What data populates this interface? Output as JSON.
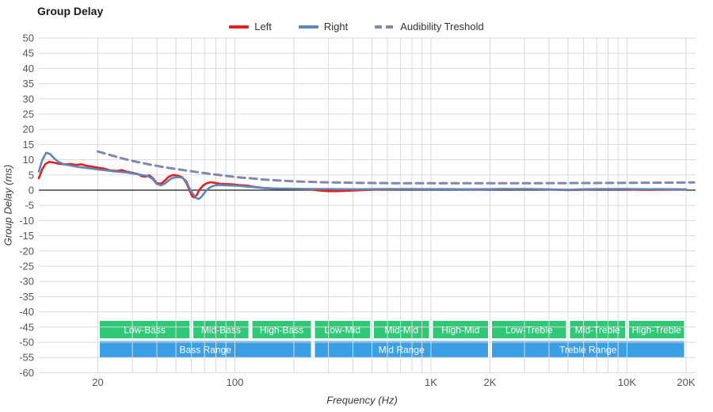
{
  "title": "Group Delay",
  "legend": {
    "items": [
      {
        "label": "Left",
        "color": "#e32020",
        "style": "solid"
      },
      {
        "label": "Right",
        "color": "#5e87b8",
        "style": "solid"
      },
      {
        "label": "Audibility Treshold",
        "color": "#8486ab",
        "style": "dashed"
      }
    ]
  },
  "colors": {
    "grid": "#d9d9d9",
    "zero_line": "#1a1a1a",
    "tick_text": "#565656",
    "band_text": "#ffffff",
    "band_green": "#2fc877",
    "band_blue": "#3a9fe4"
  },
  "chart_data": {
    "type": "line",
    "title": "Group Delay",
    "xlabel": "Frequency (Hz)",
    "ylabel": "Group Delay (ms)",
    "x_scale": "log",
    "xlim": [
      10,
      20000
    ],
    "ylim": [
      -60,
      50
    ],
    "grid": true,
    "legend_position": "top-center",
    "y_ticks": [
      50,
      45,
      40,
      35,
      30,
      25,
      20,
      15,
      10,
      5,
      0,
      -5,
      -10,
      -15,
      -20,
      -25,
      -30,
      -35,
      -40,
      -45,
      -50,
      -55,
      -60
    ],
    "x_ticks": [
      {
        "value": 20,
        "label": "20"
      },
      {
        "value": 100,
        "label": "100"
      },
      {
        "value": 1000,
        "label": "1K"
      },
      {
        "value": 2000,
        "label": "2K"
      },
      {
        "value": 10000,
        "label": "10K"
      },
      {
        "value": 20000,
        "label": "20K"
      }
    ],
    "x_gridlines": [
      20,
      30,
      40,
      50,
      60,
      70,
      80,
      90,
      100,
      200,
      300,
      400,
      500,
      600,
      700,
      800,
      900,
      1000,
      2000,
      3000,
      4000,
      5000,
      6000,
      7000,
      8000,
      9000,
      10000,
      20000
    ],
    "series": [
      {
        "name": "Audibility Treshold",
        "color": "#8486ab",
        "style": "dashed",
        "width": 3,
        "points": [
          [
            20,
            12.7
          ],
          [
            23,
            11.6
          ],
          [
            26,
            10.6
          ],
          [
            30,
            9.6
          ],
          [
            35,
            8.7
          ],
          [
            40,
            8.0
          ],
          [
            46,
            7.3
          ],
          [
            52,
            6.8
          ],
          [
            60,
            6.2
          ],
          [
            70,
            5.6
          ],
          [
            80,
            5.1
          ],
          [
            92,
            4.6
          ],
          [
            105,
            4.2
          ],
          [
            120,
            3.9
          ],
          [
            140,
            3.5
          ],
          [
            165,
            3.2
          ],
          [
            195,
            2.95
          ],
          [
            230,
            2.75
          ],
          [
            280,
            2.6
          ],
          [
            340,
            2.5
          ],
          [
            420,
            2.4
          ],
          [
            520,
            2.35
          ],
          [
            650,
            2.3
          ],
          [
            820,
            2.28
          ],
          [
            1000,
            2.27
          ],
          [
            1300,
            2.26
          ],
          [
            1700,
            2.26
          ],
          [
            2200,
            2.27
          ],
          [
            2800,
            2.28
          ],
          [
            3600,
            2.3
          ],
          [
            4600,
            2.32
          ],
          [
            6000,
            2.35
          ],
          [
            7700,
            2.38
          ],
          [
            10000,
            2.4
          ],
          [
            13000,
            2.44
          ],
          [
            16500,
            2.48
          ],
          [
            22000,
            2.55
          ]
        ]
      },
      {
        "name": "Left",
        "color": "#e32020",
        "style": "solid",
        "width": 2.6,
        "points": [
          [
            10,
            3.9
          ],
          [
            10.4,
            6.8
          ],
          [
            10.8,
            8.6
          ],
          [
            11.3,
            9.3
          ],
          [
            12,
            9.0
          ],
          [
            12.6,
            8.7
          ],
          [
            13.5,
            8.5
          ],
          [
            14.5,
            8.6
          ],
          [
            15.5,
            8.3
          ],
          [
            16.5,
            8.5
          ],
          [
            17.5,
            8.0
          ],
          [
            18.5,
            7.8
          ],
          [
            20,
            7.4
          ],
          [
            21.5,
            7.1
          ],
          [
            23,
            6.5
          ],
          [
            25,
            6.3
          ],
          [
            26.5,
            6.6
          ],
          [
            28,
            6.1
          ],
          [
            30,
            5.7
          ],
          [
            32,
            5.3
          ],
          [
            33.5,
            4.6
          ],
          [
            35,
            4.4
          ],
          [
            36.5,
            4.9
          ],
          [
            38,
            4.0
          ],
          [
            40,
            2.3
          ],
          [
            42,
            2.1
          ],
          [
            44,
            3.2
          ],
          [
            46,
            4.4
          ],
          [
            48.5,
            5.0
          ],
          [
            51,
            4.8
          ],
          [
            54,
            4.2
          ],
          [
            56.5,
            2.5
          ],
          [
            58.5,
            0.2
          ],
          [
            60.5,
            -2.0
          ],
          [
            62,
            -2.4
          ],
          [
            64,
            -1.6
          ],
          [
            66,
            0.2
          ],
          [
            69,
            1.6
          ],
          [
            72,
            2.3
          ],
          [
            75,
            2.6
          ],
          [
            79,
            2.4
          ],
          [
            84,
            2.1
          ],
          [
            90,
            2.0
          ],
          [
            97,
            1.9
          ],
          [
            105,
            1.7
          ],
          [
            115,
            1.5
          ],
          [
            125,
            1.1
          ],
          [
            140,
            0.7
          ],
          [
            160,
            0.5
          ],
          [
            185,
            0.45
          ],
          [
            210,
            0.4
          ],
          [
            240,
            0.25
          ],
          [
            270,
            -0.1
          ],
          [
            300,
            -0.35
          ],
          [
            340,
            -0.3
          ],
          [
            390,
            -0.15
          ],
          [
            450,
            0.0
          ],
          [
            520,
            0.2
          ],
          [
            600,
            0.25
          ],
          [
            700,
            0.3
          ],
          [
            820,
            0.3
          ],
          [
            950,
            0.25
          ],
          [
            1100,
            0.3
          ],
          [
            1300,
            0.35
          ],
          [
            1500,
            0.25
          ],
          [
            1750,
            0.2
          ],
          [
            2000,
            0.3
          ],
          [
            2300,
            0.35
          ],
          [
            2700,
            0.3
          ],
          [
            3200,
            0.3
          ],
          [
            3800,
            0.25
          ],
          [
            4400,
            0.15
          ],
          [
            5000,
            0.0
          ],
          [
            5600,
            0.1
          ],
          [
            6400,
            0.25
          ],
          [
            7500,
            0.3
          ],
          [
            8700,
            0.3
          ],
          [
            10000,
            0.25
          ],
          [
            11500,
            0.15
          ],
          [
            13000,
            0.1
          ],
          [
            15000,
            0.2
          ],
          [
            17000,
            0.25
          ],
          [
            20000,
            0.2
          ]
        ]
      },
      {
        "name": "Right",
        "color": "#5e87b8",
        "style": "solid",
        "width": 2.6,
        "points": [
          [
            10,
            6.1
          ],
          [
            10.4,
            9.8
          ],
          [
            10.9,
            12.3
          ],
          [
            11.4,
            11.9
          ],
          [
            12,
            10.4
          ],
          [
            12.6,
            9.3
          ],
          [
            13.5,
            8.5
          ],
          [
            14.5,
            8.1
          ],
          [
            16,
            7.6
          ],
          [
            17.5,
            7.3
          ],
          [
            19,
            7.0
          ],
          [
            20,
            6.8
          ],
          [
            22,
            6.5
          ],
          [
            24,
            6.2
          ],
          [
            26,
            6.0
          ],
          [
            28,
            5.8
          ],
          [
            30,
            5.5
          ],
          [
            32,
            5.2
          ],
          [
            34,
            4.9
          ],
          [
            36,
            4.6
          ],
          [
            38,
            3.7
          ],
          [
            40,
            2.0
          ],
          [
            42,
            1.6
          ],
          [
            44,
            2.2
          ],
          [
            46,
            3.2
          ],
          [
            48,
            4.0
          ],
          [
            51,
            4.3
          ],
          [
            54,
            4.1
          ],
          [
            56.5,
            3.0
          ],
          [
            58.5,
            0.8
          ],
          [
            61,
            -1.2
          ],
          [
            63.5,
            -2.6
          ],
          [
            65.5,
            -2.9
          ],
          [
            67.5,
            -2.2
          ],
          [
            70,
            -0.8
          ],
          [
            72.5,
            0.3
          ],
          [
            75,
            1.0
          ],
          [
            79,
            1.6
          ],
          [
            84,
            1.7
          ],
          [
            90,
            1.6
          ],
          [
            97,
            1.5
          ],
          [
            105,
            1.4
          ],
          [
            115,
            1.2
          ],
          [
            125,
            1.0
          ],
          [
            140,
            0.7
          ],
          [
            160,
            0.55
          ],
          [
            185,
            0.5
          ],
          [
            210,
            0.45
          ],
          [
            240,
            0.4
          ],
          [
            280,
            0.38
          ],
          [
            330,
            0.35
          ],
          [
            390,
            0.3
          ],
          [
            450,
            0.32
          ],
          [
            520,
            0.35
          ],
          [
            600,
            0.38
          ],
          [
            700,
            0.4
          ],
          [
            820,
            0.38
          ],
          [
            950,
            0.35
          ],
          [
            1100,
            0.33
          ],
          [
            1300,
            0.3
          ],
          [
            1500,
            0.3
          ],
          [
            1750,
            0.32
          ],
          [
            2000,
            0.35
          ],
          [
            2300,
            0.38
          ],
          [
            2700,
            0.4
          ],
          [
            3200,
            0.38
          ],
          [
            3800,
            0.3
          ],
          [
            4400,
            0.2
          ],
          [
            5000,
            0.1
          ],
          [
            5600,
            0.25
          ],
          [
            6400,
            0.35
          ],
          [
            7500,
            0.4
          ],
          [
            8700,
            0.4
          ],
          [
            10000,
            0.4
          ],
          [
            11500,
            0.33
          ],
          [
            13000,
            0.3
          ],
          [
            15000,
            0.33
          ],
          [
            17000,
            0.3
          ],
          [
            20000,
            0.25
          ]
        ]
      }
    ],
    "bands": {
      "sub_ranges": {
        "color": "#2fc877",
        "items": [
          {
            "label": "Low-Bass",
            "from": 20,
            "to": 60
          },
          {
            "label": "Mid-Bass",
            "from": 60,
            "to": 120
          },
          {
            "label": "High-Bass",
            "from": 120,
            "to": 250
          },
          {
            "label": "Low-Mid",
            "from": 250,
            "to": 500
          },
          {
            "label": "Mid-Mid",
            "from": 500,
            "to": 1000
          },
          {
            "label": "High-Mid",
            "from": 1000,
            "to": 2000
          },
          {
            "label": "Low-Treble",
            "from": 2000,
            "to": 5000
          },
          {
            "label": "Mid-Treble",
            "from": 5000,
            "to": 10000
          },
          {
            "label": "High-Treble",
            "from": 10000,
            "to": 20000
          }
        ]
      },
      "main_ranges": {
        "color": "#3a9fe4",
        "items": [
          {
            "label": "Bass Range",
            "from": 20,
            "to": 250
          },
          {
            "label": "Mid Range",
            "from": 250,
            "to": 2000
          },
          {
            "label": "Treble Range",
            "from": 2000,
            "to": 20000
          }
        ]
      }
    }
  }
}
